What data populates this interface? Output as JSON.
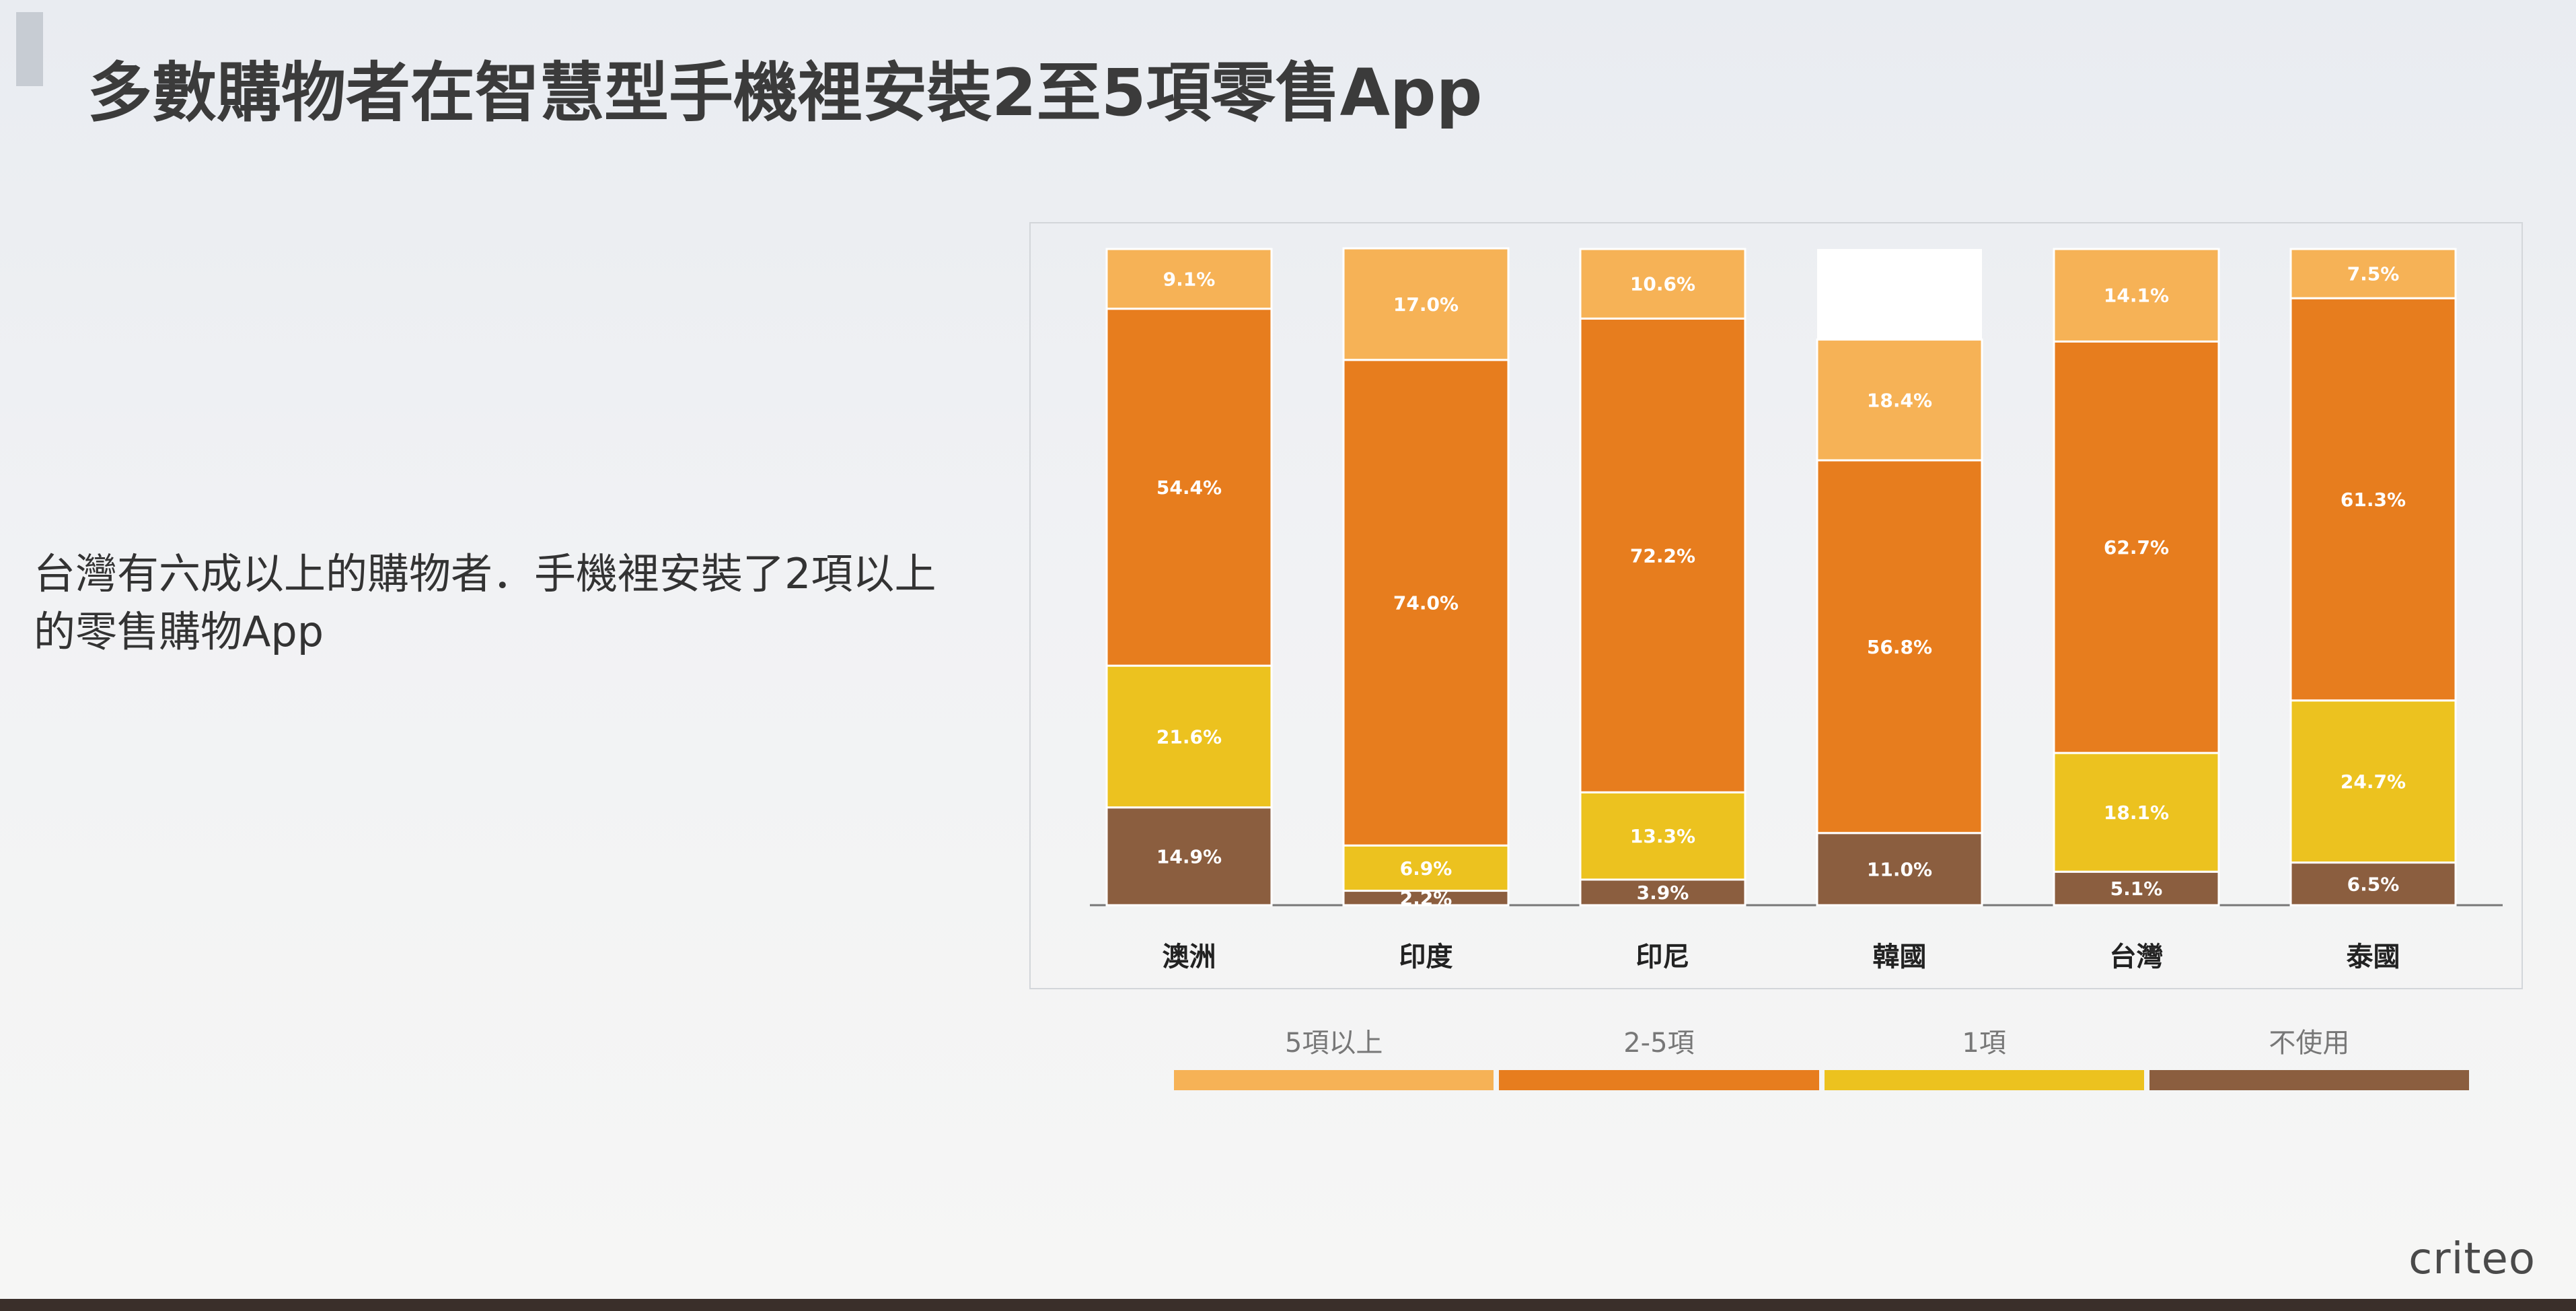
{
  "slide": {
    "title": "多數購物者在智慧型手機裡安裝2至5項零售App",
    "callout": "台灣有六成以上的購物者．手機裡安裝了2項以上的零售購物App",
    "logo": "criteo"
  },
  "colors": {
    "5項以上": "#f6b256",
    "2-5項": "#e77d1e",
    "1項": "#ecc21f",
    "不使用": "#8b5e3f",
    "background": "#f1f2f4"
  },
  "chart_data": {
    "type": "bar",
    "stacked": true,
    "percent": true,
    "categories": [
      "澳洲",
      "印度",
      "印尼",
      "韓國",
      "台灣",
      "泰國"
    ],
    "series": [
      {
        "name": "5項以上",
        "values": [
          9.1,
          17.0,
          10.6,
          18.4,
          14.1,
          7.5
        ]
      },
      {
        "name": "2-5項",
        "values": [
          54.4,
          74.0,
          72.2,
          56.8,
          62.7,
          61.3
        ]
      },
      {
        "name": "1項",
        "values": [
          21.6,
          6.9,
          13.3,
          0,
          18.1,
          24.7
        ]
      },
      {
        "name": "不使用",
        "values": [
          14.9,
          2.2,
          3.9,
          11.0,
          5.1,
          6.5
        ]
      }
    ],
    "data_labels": [
      [
        "9.1%",
        "17.0%",
        "10.6%",
        "18.4%",
        "14.1%",
        "7.5%"
      ],
      [
        "54.4%",
        "74.0%",
        "72.2%",
        "56.8%",
        "62.7%",
        "61.3%"
      ],
      [
        "21.6%",
        "6.9%",
        "13.3%",
        "",
        "18.1%",
        "24.7%"
      ],
      [
        "14.9%",
        "2.2%",
        "3.9%",
        "11.0%",
        "5.1%",
        "6.5%"
      ]
    ],
    "legend": [
      "5項以上",
      "2-5項",
      "1項",
      "不使用"
    ],
    "legend_position": "bottom",
    "ylim": [
      0,
      100
    ],
    "grid": false
  }
}
